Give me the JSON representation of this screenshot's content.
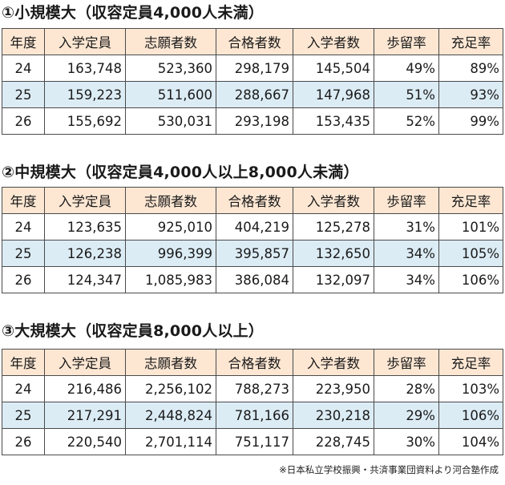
{
  "columns": [
    "年度",
    "入学定員",
    "志願者数",
    "合格者数",
    "入学者数",
    "歩留率",
    "充足率"
  ],
  "sections": [
    {
      "title": "①小規模大（収容定員4,000人未満）",
      "rows": [
        [
          "24",
          "163,748",
          "523,360",
          "298,179",
          "145,504",
          "49%",
          "89%"
        ],
        [
          "25",
          "159,223",
          "511,600",
          "288,667",
          "147,968",
          "51%",
          "93%"
        ],
        [
          "26",
          "155,692",
          "530,031",
          "293,198",
          "153,435",
          "52%",
          "99%"
        ]
      ]
    },
    {
      "title": "②中規模大（収容定員4,000人以上8,000人未満）",
      "rows": [
        [
          "24",
          "123,635",
          "925,010",
          "404,219",
          "125,278",
          "31%",
          "101%"
        ],
        [
          "25",
          "126,238",
          "996,399",
          "395,857",
          "132,650",
          "34%",
          "105%"
        ],
        [
          "26",
          "124,347",
          "1,085,983",
          "386,084",
          "132,097",
          "34%",
          "106%"
        ]
      ]
    },
    {
      "title": "③大規模大（収容定員8,000人以上）",
      "rows": [
        [
          "24",
          "216,486",
          "2,256,102",
          "788,273",
          "223,950",
          "28%",
          "103%"
        ],
        [
          "25",
          "217,291",
          "2,448,824",
          "781,166",
          "230,218",
          "29%",
          "106%"
        ],
        [
          "26",
          "220,540",
          "2,701,114",
          "751,117",
          "228,745",
          "30%",
          "104%"
        ]
      ]
    }
  ],
  "source": "※日本私立学校振興・共済事業団資料より河合塾作成",
  "colors": {
    "header_bg": "#fde7d3",
    "alt_row_bg": "#dcecf5",
    "border": "#4a4a4a"
  }
}
